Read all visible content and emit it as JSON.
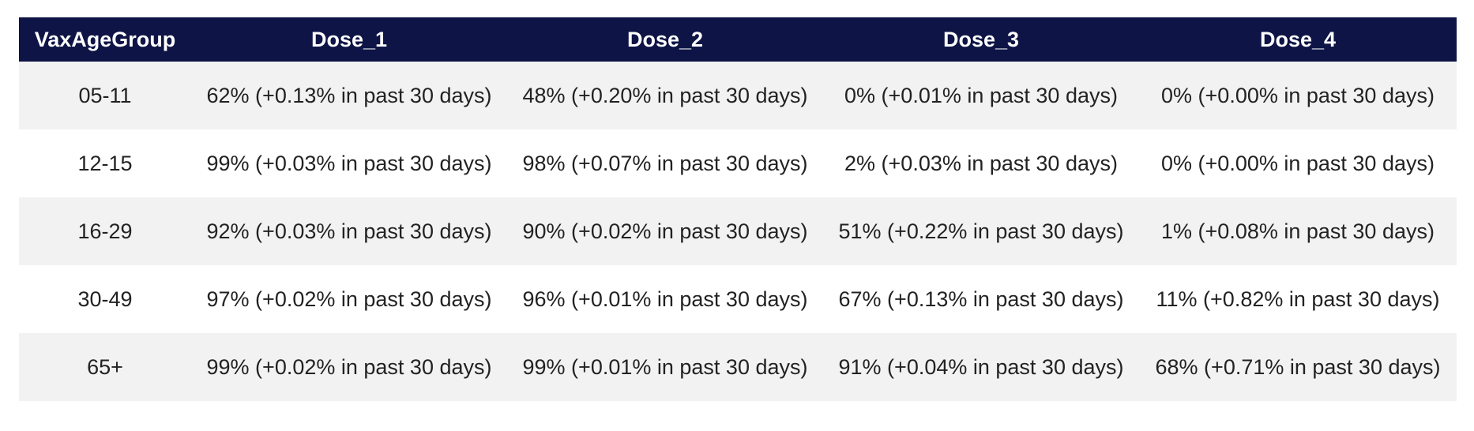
{
  "chart_data": {
    "type": "table",
    "columns": [
      "VaxAgeGroup",
      "Dose_1",
      "Dose_2",
      "Dose_3",
      "Dose_4"
    ],
    "rows": [
      [
        "05-11",
        "62% (+0.13% in past 30 days)",
        "48% (+0.20% in past 30 days)",
        "0% (+0.01% in past 30 days)",
        "0% (+0.00% in past 30 days)"
      ],
      [
        "12-15",
        "99% (+0.03% in past 30 days)",
        "98% (+0.07% in past 30 days)",
        "2% (+0.03% in past 30 days)",
        "0% (+0.00% in past 30 days)"
      ],
      [
        "16-29",
        "92% (+0.03% in past 30 days)",
        "90% (+0.02% in past 30 days)",
        "51% (+0.22% in past 30 days)",
        "1% (+0.08% in past 30 days)"
      ],
      [
        "30-49",
        "97% (+0.02% in past 30 days)",
        "96% (+0.01% in past 30 days)",
        "67% (+0.13% in past 30 days)",
        "11% (+0.82% in past 30 days)"
      ],
      [
        "65+",
        "99% (+0.02% in past 30 days)",
        "99% (+0.01% in past 30 days)",
        "91% (+0.04% in past 30 days)",
        "68% (+0.71% in past 30 days)"
      ]
    ],
    "header_background": "#0e1445",
    "header_text_color": "#ffffff",
    "stripe_color": "#f2f2f2"
  }
}
